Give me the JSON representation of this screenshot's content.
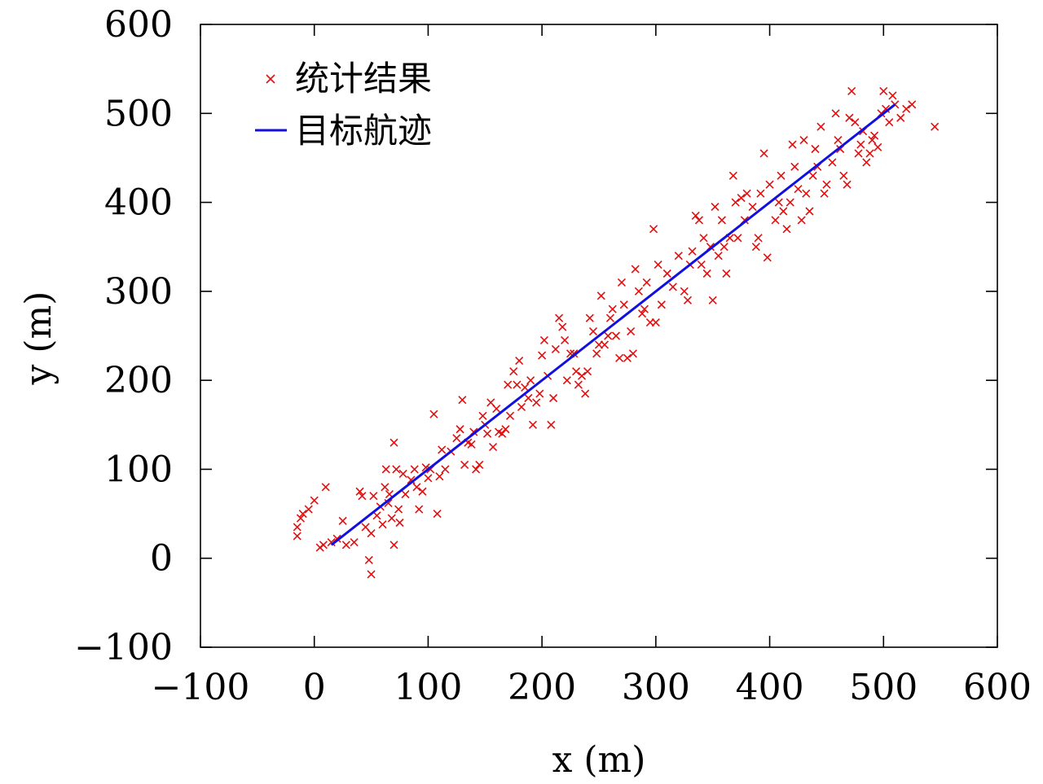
{
  "chart_data": {
    "type": "scatter",
    "title": "",
    "xlabel": "x (m)",
    "ylabel": "y (m)",
    "xlim": [
      -100,
      600
    ],
    "ylim": [
      -100,
      600
    ],
    "xticks": [
      "−100",
      "0",
      "100",
      "200",
      "300",
      "400",
      "500",
      "600"
    ],
    "yticks": [
      "−100",
      "0",
      "100",
      "200",
      "300",
      "400",
      "500",
      "600"
    ],
    "grid": false,
    "legend_position": "top-left",
    "series": [
      {
        "name": "统计结果",
        "type": "scatter",
        "marker": "x",
        "color": "#e01010",
        "points": [
          [
            -15,
            25
          ],
          [
            -15,
            35
          ],
          [
            -12,
            45
          ],
          [
            -10,
            50
          ],
          [
            -5,
            55
          ],
          [
            0,
            65
          ],
          [
            10,
            80
          ],
          [
            5,
            12
          ],
          [
            8,
            15
          ],
          [
            15,
            18
          ],
          [
            20,
            22
          ],
          [
            25,
            42
          ],
          [
            28,
            15
          ],
          [
            35,
            18
          ],
          [
            40,
            75
          ],
          [
            42,
            70
          ],
          [
            45,
            35
          ],
          [
            48,
            -2
          ],
          [
            50,
            -18
          ],
          [
            50,
            28
          ],
          [
            52,
            70
          ],
          [
            55,
            48
          ],
          [
            58,
            58
          ],
          [
            60,
            38
          ],
          [
            62,
            80
          ],
          [
            63,
            100
          ],
          [
            65,
            62
          ],
          [
            66,
            72
          ],
          [
            68,
            45
          ],
          [
            70,
            15
          ],
          [
            70,
            130
          ],
          [
            72,
            100
          ],
          [
            74,
            55
          ],
          [
            75,
            40
          ],
          [
            78,
            95
          ],
          [
            80,
            72
          ],
          [
            85,
            88
          ],
          [
            88,
            100
          ],
          [
            90,
            80
          ],
          [
            92,
            55
          ],
          [
            95,
            75
          ],
          [
            98,
            102
          ],
          [
            100,
            90
          ],
          [
            102,
            100
          ],
          [
            105,
            162
          ],
          [
            108,
            50
          ],
          [
            110,
            92
          ],
          [
            112,
            122
          ],
          [
            115,
            100
          ],
          [
            120,
            120
          ],
          [
            125,
            135
          ],
          [
            128,
            145
          ],
          [
            130,
            178
          ],
          [
            132,
            105
          ],
          [
            135,
            130
          ],
          [
            138,
            128
          ],
          [
            140,
            142
          ],
          [
            142,
            100
          ],
          [
            145,
            105
          ],
          [
            148,
            160
          ],
          [
            150,
            150
          ],
          [
            152,
            140
          ],
          [
            155,
            175
          ],
          [
            157,
            125
          ],
          [
            160,
            168
          ],
          [
            162,
            142
          ],
          [
            165,
            140
          ],
          [
            168,
            145
          ],
          [
            170,
            195
          ],
          [
            172,
            160
          ],
          [
            175,
            210
          ],
          [
            178,
            195
          ],
          [
            180,
            222
          ],
          [
            182,
            170
          ],
          [
            185,
            192
          ],
          [
            188,
            180
          ],
          [
            190,
            200
          ],
          [
            192,
            150
          ],
          [
            195,
            175
          ],
          [
            198,
            185
          ],
          [
            200,
            228
          ],
          [
            202,
            245
          ],
          [
            205,
            205
          ],
          [
            208,
            150
          ],
          [
            210,
            180
          ],
          [
            212,
            235
          ],
          [
            215,
            270
          ],
          [
            218,
            260
          ],
          [
            220,
            245
          ],
          [
            222,
            200
          ],
          [
            225,
            230
          ],
          [
            228,
            230
          ],
          [
            230,
            210
          ],
          [
            232,
            195
          ],
          [
            235,
            205
          ],
          [
            238,
            185
          ],
          [
            240,
            210
          ],
          [
            242,
            270
          ],
          [
            245,
            255
          ],
          [
            248,
            230
          ],
          [
            250,
            240
          ],
          [
            252,
            295
          ],
          [
            255,
            240
          ],
          [
            258,
            250
          ],
          [
            260,
            270
          ],
          [
            262,
            280
          ],
          [
            265,
            250
          ],
          [
            268,
            225
          ],
          [
            270,
            310
          ],
          [
            272,
            285
          ],
          [
            275,
            225
          ],
          [
            278,
            255
          ],
          [
            280,
            230
          ],
          [
            282,
            325
          ],
          [
            285,
            300
          ],
          [
            288,
            275
          ],
          [
            290,
            280
          ],
          [
            292,
            310
          ],
          [
            295,
            265
          ],
          [
            298,
            370
          ],
          [
            300,
            265
          ],
          [
            302,
            330
          ],
          [
            305,
            285
          ],
          [
            310,
            320
          ],
          [
            315,
            305
          ],
          [
            320,
            340
          ],
          [
            325,
            300
          ],
          [
            328,
            290
          ],
          [
            330,
            330
          ],
          [
            332,
            345
          ],
          [
            335,
            385
          ],
          [
            338,
            380
          ],
          [
            340,
            330
          ],
          [
            342,
            360
          ],
          [
            345,
            320
          ],
          [
            348,
            350
          ],
          [
            350,
            290
          ],
          [
            352,
            395
          ],
          [
            355,
            340
          ],
          [
            358,
            380
          ],
          [
            360,
            350
          ],
          [
            362,
            320
          ],
          [
            365,
            360
          ],
          [
            368,
            430
          ],
          [
            370,
            400
          ],
          [
            372,
            360
          ],
          [
            375,
            405
          ],
          [
            378,
            380
          ],
          [
            380,
            410
          ],
          [
            385,
            395
          ],
          [
            388,
            350
          ],
          [
            390,
            360
          ],
          [
            392,
            410
          ],
          [
            395,
            455
          ],
          [
            398,
            338
          ],
          [
            400,
            420
          ],
          [
            405,
            380
          ],
          [
            408,
            400
          ],
          [
            410,
            430
          ],
          [
            412,
            390
          ],
          [
            415,
            370
          ],
          [
            418,
            400
          ],
          [
            420,
            465
          ],
          [
            422,
            440
          ],
          [
            425,
            415
          ],
          [
            428,
            380
          ],
          [
            430,
            470
          ],
          [
            432,
            410
          ],
          [
            435,
            390
          ],
          [
            438,
            430
          ],
          [
            440,
            460
          ],
          [
            442,
            440
          ],
          [
            445,
            485
          ],
          [
            448,
            410
          ],
          [
            450,
            420
          ],
          [
            455,
            445
          ],
          [
            458,
            500
          ],
          [
            460,
            470
          ],
          [
            462,
            460
          ],
          [
            465,
            430
          ],
          [
            468,
            420
          ],
          [
            470,
            495
          ],
          [
            472,
            525
          ],
          [
            475,
            490
          ],
          [
            478,
            455
          ],
          [
            480,
            465
          ],
          [
            482,
            480
          ],
          [
            485,
            445
          ],
          [
            488,
            455
          ],
          [
            490,
            470
          ],
          [
            492,
            475
          ],
          [
            495,
            462
          ],
          [
            498,
            500
          ],
          [
            500,
            525
          ],
          [
            502,
            505
          ],
          [
            505,
            490
          ],
          [
            508,
            520
          ],
          [
            510,
            510
          ],
          [
            515,
            495
          ],
          [
            520,
            505
          ],
          [
            525,
            510
          ],
          [
            545,
            485
          ]
        ]
      },
      {
        "name": "目标航迹",
        "type": "line",
        "color": "#1010e0",
        "points": [
          [
            15,
            15
          ],
          [
            510,
            510
          ]
        ]
      }
    ]
  }
}
